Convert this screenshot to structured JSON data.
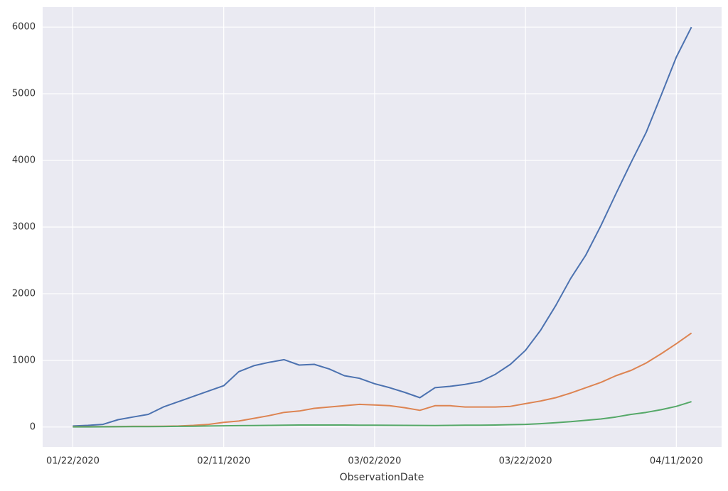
{
  "chart_data": {
    "type": "line",
    "x_label": "ObservationDate",
    "x": [
      "01/22/2020",
      "01/24/2020",
      "01/26/2020",
      "01/28/2020",
      "01/30/2020",
      "02/01/2020",
      "02/03/2020",
      "02/05/2020",
      "02/07/2020",
      "02/09/2020",
      "02/11/2020",
      "02/13/2020",
      "02/15/2020",
      "02/17/2020",
      "02/19/2020",
      "02/21/2020",
      "02/23/2020",
      "02/25/2020",
      "02/27/2020",
      "02/29/2020",
      "03/02/2020",
      "03/04/2020",
      "03/06/2020",
      "03/08/2020",
      "03/10/2020",
      "03/12/2020",
      "03/14/2020",
      "03/16/2020",
      "03/18/2020",
      "03/20/2020",
      "03/22/2020",
      "03/24/2020",
      "03/26/2020",
      "03/28/2020",
      "03/30/2020",
      "04/01/2020",
      "04/03/2020",
      "04/05/2020",
      "04/07/2020",
      "04/09/2020",
      "04/11/2020",
      "04/13/2020"
    ],
    "series": [
      {
        "color": "#4c72b0",
        "values": [
          15,
          25,
          40,
          110,
          150,
          190,
          300,
          380,
          460,
          540,
          620,
          830,
          920,
          970,
          1010,
          930,
          940,
          870,
          770,
          730,
          650,
          590,
          520,
          440,
          590,
          610,
          640,
          680,
          790,
          940,
          1150,
          1450,
          1820,
          2230,
          2580,
          3020,
          3500,
          3970,
          4420,
          4980,
          5550,
          6000
        ]
      },
      {
        "color": "#dd8452",
        "values": [
          5,
          5,
          5,
          8,
          10,
          10,
          12,
          15,
          25,
          40,
          70,
          90,
          130,
          170,
          220,
          240,
          280,
          300,
          320,
          340,
          330,
          320,
          290,
          250,
          320,
          320,
          300,
          300,
          300,
          310,
          350,
          390,
          440,
          510,
          590,
          670,
          770,
          850,
          960,
          1100,
          1250,
          1410
        ]
      },
      {
        "color": "#55a868",
        "values": [
          2,
          2,
          3,
          4,
          5,
          6,
          8,
          10,
          12,
          15,
          18,
          20,
          22,
          25,
          28,
          30,
          30,
          30,
          30,
          28,
          27,
          26,
          25,
          24,
          23,
          25,
          27,
          28,
          30,
          35,
          40,
          50,
          65,
          80,
          100,
          120,
          150,
          190,
          220,
          260,
          310,
          380
        ]
      }
    ],
    "xlim": [
      "01/18/2020",
      "04/17/2020"
    ],
    "xticks": [
      "01/22/2020",
      "02/11/2020",
      "03/02/2020",
      "03/22/2020",
      "04/11/2020"
    ],
    "ylim": [
      -300,
      6300
    ],
    "yticks": [
      0,
      1000,
      2000,
      3000,
      4000,
      5000,
      6000
    ],
    "grid": true,
    "background": "#eaeaf2"
  }
}
